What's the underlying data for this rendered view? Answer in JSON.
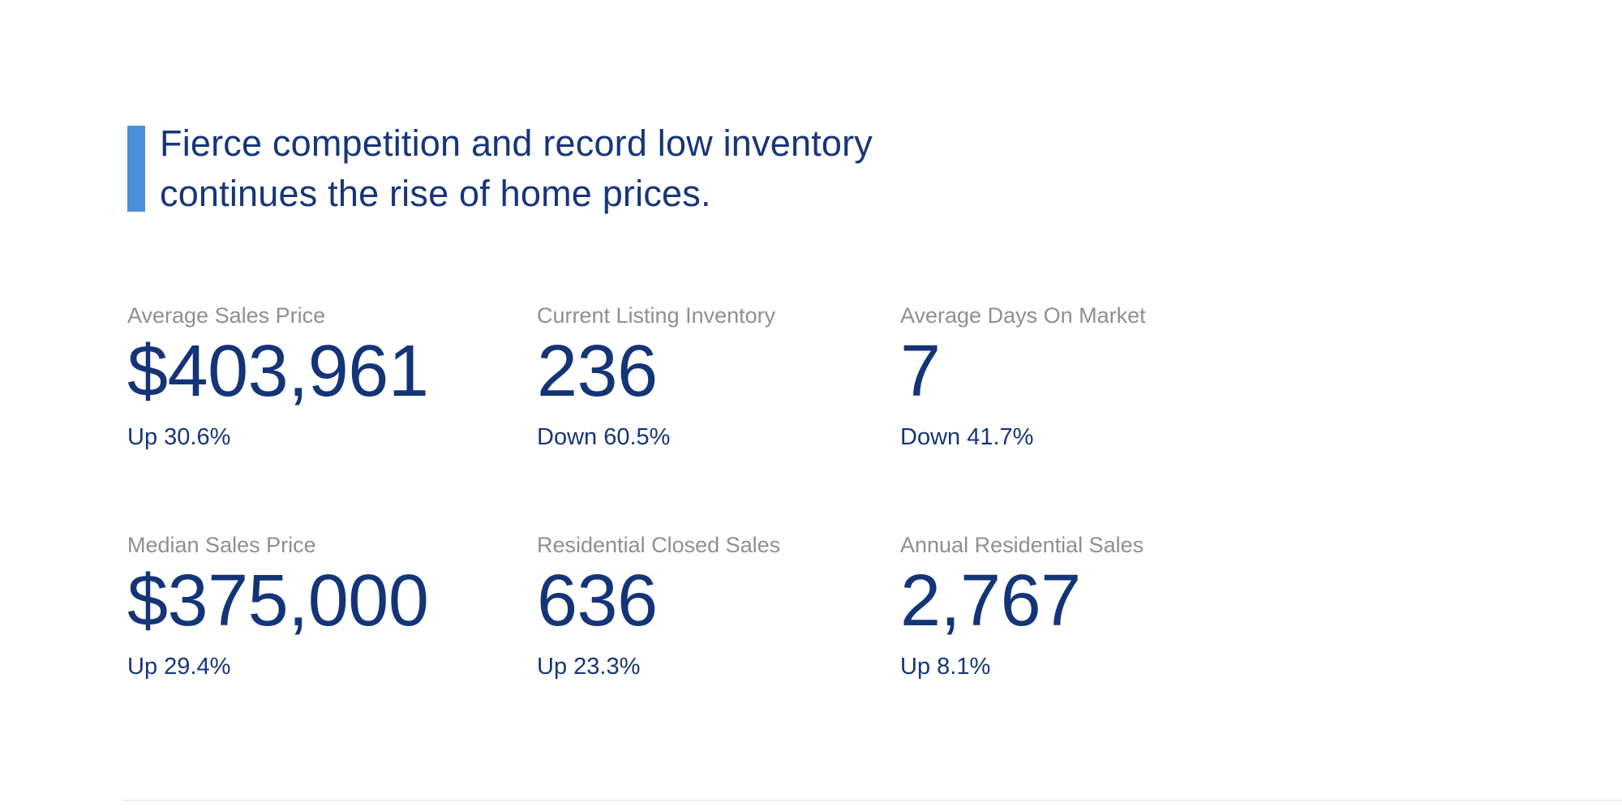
{
  "headline": {
    "line1": "Fierce competition and record low inventory",
    "line2": "continues the rise of home prices."
  },
  "colors": {
    "accent_bar": "#4a8fd8",
    "headline_navy": "#173679",
    "value_navy": "#143478",
    "label_gray": "#8f8f8f",
    "background": "#ffffff"
  },
  "stats": [
    {
      "label": "Average Sales Price",
      "value": "$403,961",
      "change": "Up 30.6%",
      "direction": "up"
    },
    {
      "label": "Current Listing Inventory",
      "value": "236",
      "change": "Down 60.5%",
      "direction": "down"
    },
    {
      "label": "Average Days On Market",
      "value": "7",
      "change": "Down 41.7%",
      "direction": "down"
    },
    {
      "label": "Median Sales Price",
      "value": "$375,000",
      "change": "Up 29.4%",
      "direction": "up"
    },
    {
      "label": "Residential Closed Sales",
      "value": "636",
      "change": "Up 23.3%",
      "direction": "up"
    },
    {
      "label": "Annual Residential Sales",
      "value": "2,767",
      "change": "Up 8.1%",
      "direction": "up"
    }
  ]
}
